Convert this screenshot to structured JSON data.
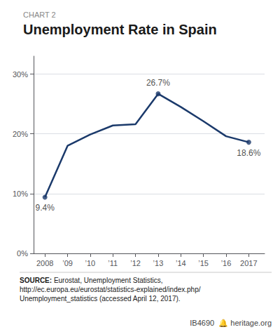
{
  "chart_data": {
    "type": "line",
    "title": "Unemployment Rate in Spain",
    "subtitle": "CHART 2",
    "x": [
      2008,
      2009,
      2010,
      2011,
      2012,
      2013,
      2014,
      2015,
      2016,
      2017
    ],
    "values": [
      9.4,
      18.0,
      19.9,
      21.4,
      21.6,
      26.7,
      24.5,
      22.1,
      19.6,
      18.6
    ],
    "color": "#1b3a6b",
    "xlim": [
      2007.5,
      2017.7
    ],
    "xticks": [
      2008,
      {
        "value": 2009,
        "label": "’09"
      },
      {
        "value": 2010,
        "label": "’10"
      },
      {
        "value": 2011,
        "label": "’11"
      },
      {
        "value": 2012,
        "label": "’12"
      },
      {
        "value": 2013,
        "label": "’13"
      },
      {
        "value": 2014,
        "label": "’14"
      },
      {
        "value": 2015,
        "label": "’15"
      },
      {
        "value": 2016,
        "label": "’16"
      },
      2017
    ],
    "ylim": [
      0,
      33
    ],
    "yticks": [
      {
        "value": 0,
        "label": "0%"
      },
      {
        "value": 10,
        "label": "10%"
      },
      {
        "value": 20,
        "label": "20%"
      },
      {
        "value": 30,
        "label": "30%"
      }
    ],
    "grid": true,
    "annotations": [
      {
        "x": 2008,
        "y": 9.4,
        "text": "9.4%"
      },
      {
        "x": 2013,
        "y": 26.7,
        "text": "26.7%"
      },
      {
        "x": 2017,
        "y": 18.6,
        "text": "18.6%"
      }
    ],
    "source_label": "SOURCE:",
    "source": " Eurostat, Unemployment Statistics,\nhttp://ec.europa.eu/eurostat/statistics-explained/index.php/\nUnemployment_statistics (accessed April 12, 2017).",
    "footer": "IB4690  🔔 heritage.org"
  }
}
